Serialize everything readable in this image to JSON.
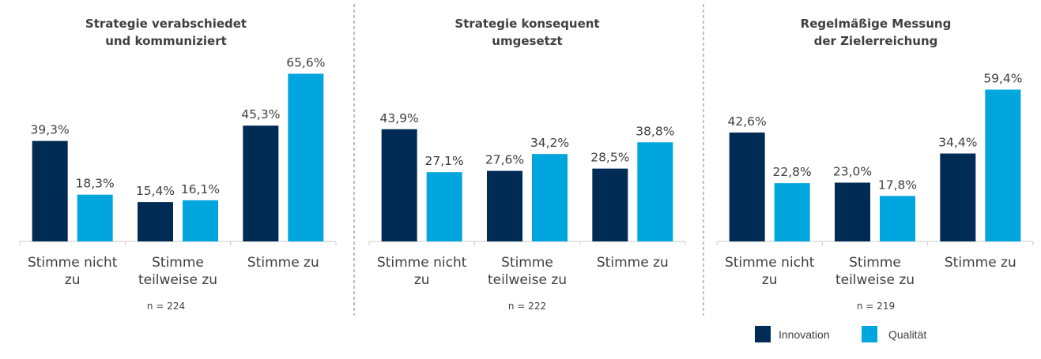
{
  "colors": {
    "innovation": "#002b55",
    "qualitaet": "#00a6dd",
    "text": "#404040",
    "axis": "#c8c8c8",
    "divider": "#7f7f7f"
  },
  "legend": [
    {
      "key": "innovation",
      "label": "Innovation"
    },
    {
      "key": "qualitaet",
      "label": "Qualität"
    }
  ],
  "chart_data": [
    {
      "type": "bar",
      "title": [
        "Strategie verabschiedet",
        "und kommuniziert"
      ],
      "categories": [
        [
          "Stimme nicht",
          "zu"
        ],
        [
          "Stimme",
          "teilweise zu"
        ],
        [
          "Stimme zu"
        ]
      ],
      "series": [
        {
          "name": "Innovation",
          "values": [
            39.3,
            15.4,
            45.3
          ],
          "labels": [
            "39,3%",
            "15,4%",
            "45,3%"
          ]
        },
        {
          "name": "Qualität",
          "values": [
            18.3,
            16.1,
            65.6
          ],
          "labels": [
            "18,3%",
            "16,1%",
            "65,6%"
          ]
        }
      ],
      "n_label": "n = 224",
      "ylim": [
        0,
        70
      ]
    },
    {
      "type": "bar",
      "title": [
        "Strategie konsequent",
        "umgesetzt"
      ],
      "categories": [
        [
          "Stimme nicht",
          "zu"
        ],
        [
          "Stimme",
          "teilweise zu"
        ],
        [
          "Stimme zu"
        ]
      ],
      "series": [
        {
          "name": "Innovation",
          "values": [
            43.9,
            27.6,
            28.5
          ],
          "labels": [
            "43,9%",
            "27,6%",
            "28,5%"
          ]
        },
        {
          "name": "Qualität",
          "values": [
            27.1,
            34.2,
            38.8
          ],
          "labels": [
            "27,1%",
            "34,2%",
            "38,8%"
          ]
        }
      ],
      "n_label": "n = 222",
      "ylim": [
        0,
        70
      ]
    },
    {
      "type": "bar",
      "title": [
        "Regelmäßige Messung",
        "der Zielerreichung"
      ],
      "categories": [
        [
          "Stimme nicht",
          "zu"
        ],
        [
          "Stimme",
          "teilweise zu"
        ],
        [
          "Stimme zu"
        ]
      ],
      "series": [
        {
          "name": "Innovation",
          "values": [
            42.6,
            23.0,
            34.4
          ],
          "labels": [
            "42,6%",
            "23,0%",
            "34,4%"
          ]
        },
        {
          "name": "Qualität",
          "values": [
            22.8,
            17.8,
            59.4
          ],
          "labels": [
            "22,8%",
            "17,8%",
            "59,4%"
          ]
        }
      ],
      "n_label": "n = 219",
      "ylim": [
        0,
        70
      ]
    }
  ]
}
